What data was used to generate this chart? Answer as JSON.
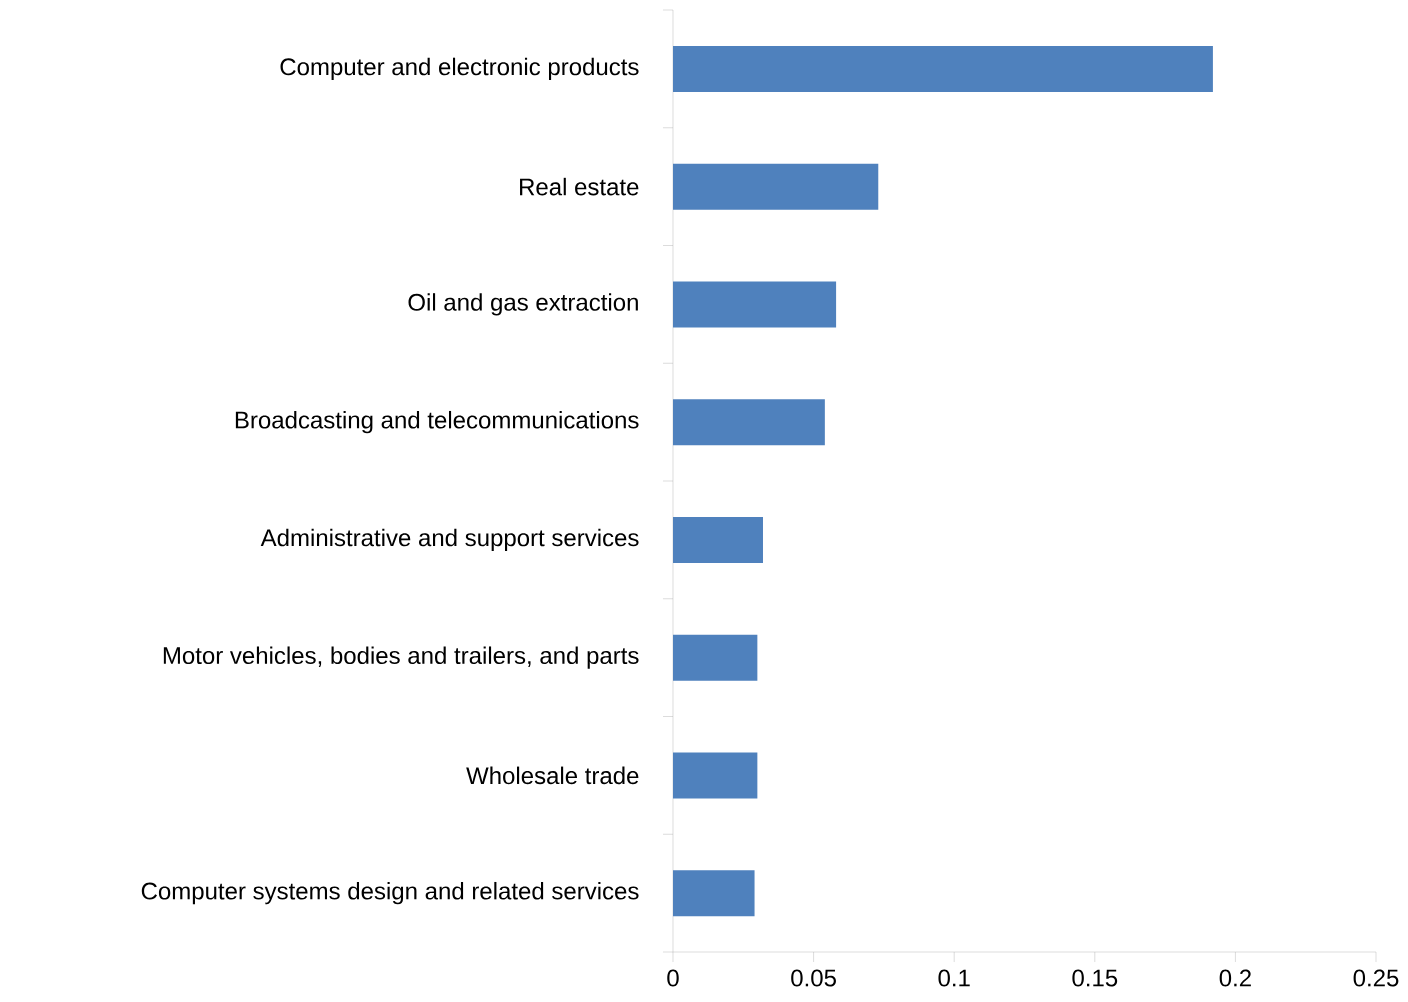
{
  "chart_data": {
    "type": "bar",
    "orientation": "horizontal",
    "categories": [
      "Computer and electronic products",
      "Real estate",
      "Oil and gas extraction",
      "Broadcasting and telecommunications",
      "Administrative and support services",
      "Motor vehicles, bodies and trailers, and parts",
      "Wholesale trade",
      "Computer systems design and related services"
    ],
    "values": [
      0.192,
      0.073,
      0.058,
      0.054,
      0.032,
      0.03,
      0.03,
      0.029
    ],
    "color": "#4f81bd",
    "xlim": [
      0,
      0.25
    ],
    "xticks": [
      0,
      0.05,
      0.1,
      0.15,
      0.2,
      0.25
    ]
  }
}
